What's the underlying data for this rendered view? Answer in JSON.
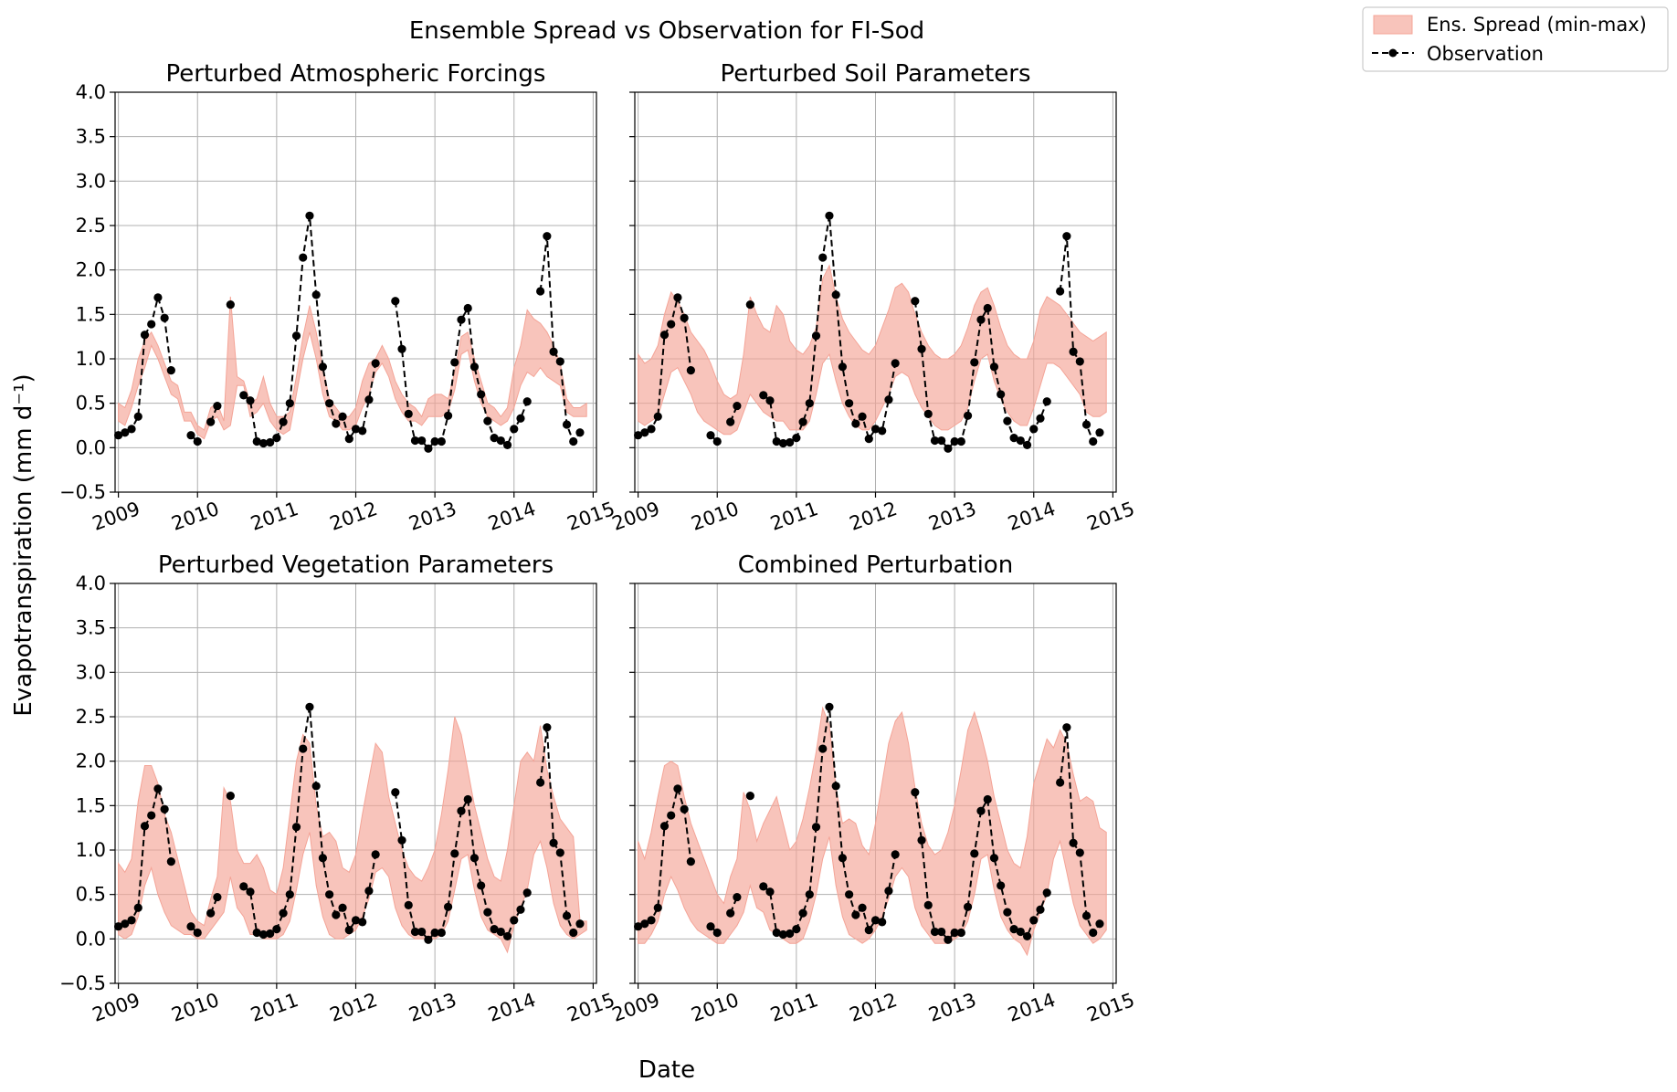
{
  "figure": {
    "title": "Ensemble Spread vs Observation for FI-Sod",
    "xlabel": "Date",
    "ylabel": "Evapotranspiration (mm d⁻¹)"
  },
  "legend": {
    "position": "top-right",
    "items": [
      {
        "label": "Ens. Spread (min-max)",
        "type": "band",
        "color": "#f4a497"
      },
      {
        "label": "Observation",
        "type": "line-marker",
        "color": "#000000"
      }
    ]
  },
  "chart_data": {
    "type": "area",
    "x_axis": {
      "kind": "monthly dates",
      "start": "2009-01",
      "end": "2014-12",
      "range": [
        "2008-12",
        "2015-01"
      ],
      "ticks": [
        "2009",
        "2010",
        "2011",
        "2012",
        "2013",
        "2014",
        "2015"
      ]
    },
    "y_axis": {
      "range": [
        -0.5,
        4.0
      ],
      "ticks": [
        "−0.5",
        "0.0",
        "0.5",
        "1.0",
        "1.5",
        "2.0",
        "2.5",
        "3.0",
        "3.5",
        "4.0"
      ]
    },
    "grid": true,
    "observation": [
      0.14,
      0.17,
      0.21,
      0.35,
      1.27,
      1.39,
      1.69,
      1.46,
      0.87,
      null,
      null,
      0.14,
      0.07,
      null,
      0.29,
      0.47,
      null,
      1.61,
      null,
      0.59,
      0.53,
      0.07,
      0.05,
      0.06,
      0.11,
      0.29,
      0.5,
      1.26,
      2.14,
      2.61,
      1.72,
      0.91,
      0.5,
      0.27,
      0.35,
      0.1,
      0.21,
      0.19,
      0.54,
      0.95,
      null,
      null,
      1.65,
      1.11,
      0.38,
      0.08,
      0.08,
      -0.01,
      0.07,
      0.07,
      0.36,
      0.96,
      1.44,
      1.57,
      0.91,
      0.6,
      0.3,
      0.11,
      0.08,
      0.03,
      0.21,
      0.33,
      0.52,
      null,
      1.76,
      2.38,
      1.08,
      0.97,
      0.26,
      0.07,
      0.17,
      null
    ],
    "panels": [
      {
        "title": "Perturbed Atmospheric Forcings",
        "ens_min": [
          0.3,
          0.25,
          0.45,
          0.7,
          0.9,
          1.15,
          1.0,
          0.8,
          0.6,
          0.55,
          0.3,
          0.3,
          0.15,
          0.1,
          0.3,
          0.35,
          0.2,
          0.25,
          0.7,
          0.7,
          0.35,
          0.4,
          0.5,
          0.3,
          0.2,
          0.15,
          0.2,
          0.6,
          1.0,
          1.3,
          1.0,
          0.6,
          0.35,
          0.3,
          0.2,
          0.2,
          0.25,
          0.45,
          0.6,
          0.85,
          0.95,
          0.8,
          0.55,
          0.4,
          0.3,
          0.3,
          0.25,
          0.35,
          0.35,
          0.35,
          0.4,
          0.65,
          1.05,
          1.1,
          0.75,
          0.5,
          0.35,
          0.3,
          0.25,
          0.3,
          0.45,
          0.7,
          0.85,
          0.8,
          0.9,
          0.8,
          0.75,
          0.7,
          0.4,
          0.35,
          0.35,
          0.35
        ],
        "ens_max": [
          0.5,
          0.45,
          0.65,
          1.0,
          1.2,
          1.3,
          1.15,
          0.95,
          0.75,
          0.7,
          0.4,
          0.4,
          0.25,
          0.2,
          0.45,
          0.5,
          0.3,
          1.7,
          0.8,
          0.75,
          0.5,
          0.55,
          0.8,
          0.5,
          0.35,
          0.35,
          0.4,
          0.8,
          1.25,
          1.6,
          1.3,
          0.9,
          0.55,
          0.45,
          0.35,
          0.35,
          0.45,
          0.75,
          0.95,
          1.0,
          1.15,
          1.0,
          0.75,
          0.6,
          0.5,
          0.45,
          0.35,
          0.55,
          0.6,
          0.6,
          0.55,
          0.85,
          1.25,
          1.3,
          1.0,
          0.75,
          0.5,
          0.45,
          0.35,
          0.45,
          0.9,
          1.15,
          1.55,
          1.45,
          1.4,
          1.3,
          1.15,
          0.95,
          0.55,
          0.45,
          0.45,
          0.5
        ]
      },
      {
        "title": "Perturbed Soil Parameters",
        "ens_min": [
          0.3,
          0.25,
          0.3,
          0.35,
          0.6,
          0.85,
          0.9,
          0.75,
          0.6,
          0.4,
          0.3,
          0.25,
          0.2,
          0.15,
          0.15,
          0.2,
          0.4,
          0.6,
          0.5,
          0.4,
          0.35,
          0.3,
          0.3,
          0.2,
          0.2,
          0.2,
          0.3,
          0.6,
          0.95,
          1.05,
          0.75,
          0.5,
          0.35,
          0.25,
          0.2,
          0.2,
          0.3,
          0.45,
          0.6,
          0.8,
          0.85,
          0.8,
          0.6,
          0.45,
          0.35,
          0.25,
          0.2,
          0.2,
          0.25,
          0.3,
          0.45,
          0.75,
          1.0,
          1.05,
          0.75,
          0.55,
          0.4,
          0.3,
          0.25,
          0.25,
          0.45,
          0.7,
          0.95,
          0.95,
          0.9,
          0.8,
          0.7,
          0.6,
          0.4,
          0.35,
          0.35,
          0.4
        ],
        "ens_max": [
          1.05,
          0.95,
          1.0,
          1.15,
          1.5,
          1.75,
          1.65,
          1.5,
          1.3,
          1.2,
          1.1,
          0.95,
          0.75,
          0.6,
          0.55,
          0.6,
          1.05,
          1.7,
          1.5,
          1.35,
          1.3,
          1.6,
          1.5,
          1.2,
          1.1,
          1.05,
          1.15,
          1.35,
          1.9,
          2.05,
          1.7,
          1.45,
          1.3,
          1.2,
          1.1,
          1.05,
          1.15,
          1.35,
          1.55,
          1.8,
          1.85,
          1.75,
          1.5,
          1.3,
          1.15,
          1.05,
          1.0,
          1.0,
          1.05,
          1.15,
          1.35,
          1.6,
          1.75,
          1.8,
          1.6,
          1.35,
          1.15,
          1.05,
          1.0,
          1.0,
          1.2,
          1.55,
          1.7,
          1.65,
          1.6,
          1.5,
          1.4,
          1.3,
          1.25,
          1.2,
          1.25,
          1.3
        ]
      },
      {
        "title": "Perturbed Vegetation Parameters",
        "ens_min": [
          0.05,
          0.0,
          0.05,
          0.25,
          0.6,
          0.8,
          0.5,
          0.3,
          0.15,
          0.1,
          0.05,
          0.05,
          0.0,
          0.0,
          0.1,
          0.2,
          0.3,
          0.7,
          0.35,
          0.25,
          0.05,
          0.05,
          0.0,
          0.0,
          0.0,
          0.05,
          0.2,
          0.55,
          0.95,
          1.2,
          0.6,
          0.25,
          0.05,
          0.0,
          0.0,
          0.05,
          0.1,
          0.25,
          0.45,
          0.75,
          0.8,
          0.7,
          0.35,
          0.15,
          0.05,
          0.0,
          0.0,
          0.0,
          0.0,
          0.05,
          0.2,
          0.55,
          0.9,
          0.95,
          0.55,
          0.25,
          0.1,
          0.05,
          0.0,
          -0.15,
          0.15,
          0.35,
          0.55,
          0.95,
          1.1,
          0.8,
          0.4,
          0.15,
          0.05,
          0.0,
          0.05,
          0.1
        ],
        "ens_max": [
          0.85,
          0.75,
          0.9,
          1.55,
          1.95,
          1.95,
          1.75,
          1.4,
          1.2,
          0.9,
          0.6,
          0.3,
          0.2,
          0.15,
          0.45,
          0.7,
          1.7,
          1.55,
          1.0,
          0.85,
          0.85,
          0.95,
          0.8,
          0.55,
          0.5,
          0.8,
          1.4,
          2.0,
          2.3,
          2.2,
          1.5,
          1.15,
          1.2,
          1.1,
          0.8,
          0.75,
          0.95,
          1.4,
          1.8,
          2.2,
          2.1,
          1.6,
          1.3,
          1.0,
          0.8,
          0.7,
          0.65,
          0.8,
          1.0,
          1.4,
          1.9,
          2.5,
          2.3,
          1.9,
          1.5,
          1.2,
          0.9,
          0.7,
          0.65,
          1.0,
          1.5,
          2.0,
          2.1,
          2.0,
          2.4,
          1.9,
          1.6,
          1.35,
          1.25,
          1.15,
          0.2,
          0.2
        ]
      },
      {
        "title": "Combined Perturbation",
        "ens_min": [
          -0.05,
          -0.05,
          0.05,
          0.2,
          0.5,
          0.7,
          0.55,
          0.35,
          0.2,
          0.1,
          0.05,
          0.0,
          -0.05,
          -0.05,
          0.05,
          0.15,
          0.3,
          0.6,
          0.35,
          0.3,
          0.1,
          0.05,
          0.0,
          -0.05,
          -0.05,
          0.0,
          0.2,
          0.5,
          0.9,
          1.15,
          0.6,
          0.25,
          0.05,
          0.0,
          -0.05,
          0.0,
          0.1,
          0.25,
          0.45,
          0.7,
          0.8,
          0.7,
          0.35,
          0.15,
          0.05,
          -0.05,
          -0.05,
          -0.05,
          0.0,
          0.05,
          0.2,
          0.5,
          0.9,
          0.95,
          0.55,
          0.25,
          0.1,
          0.0,
          -0.05,
          -0.18,
          0.1,
          0.3,
          0.5,
          0.9,
          1.1,
          0.75,
          0.4,
          0.15,
          0.05,
          -0.05,
          0.0,
          0.1
        ],
        "ens_max": [
          1.1,
          0.9,
          1.2,
          1.6,
          1.95,
          2.0,
          1.95,
          1.6,
          1.3,
          1.1,
          0.9,
          0.7,
          0.5,
          0.4,
          0.7,
          0.9,
          1.65,
          1.45,
          1.1,
          1.3,
          1.45,
          1.6,
          1.3,
          1.0,
          1.1,
          1.35,
          1.7,
          2.1,
          2.6,
          2.4,
          1.7,
          1.3,
          1.35,
          1.3,
          1.05,
          0.95,
          1.3,
          1.75,
          2.2,
          2.45,
          2.55,
          2.2,
          1.7,
          1.3,
          1.05,
          0.95,
          1.0,
          1.2,
          1.5,
          1.9,
          2.35,
          2.55,
          2.3,
          2.0,
          1.6,
          1.3,
          1.0,
          0.85,
          0.8,
          1.15,
          1.75,
          2.0,
          2.25,
          2.15,
          2.35,
          2.2,
          1.85,
          1.55,
          1.6,
          1.55,
          1.25,
          1.2
        ]
      }
    ]
  }
}
